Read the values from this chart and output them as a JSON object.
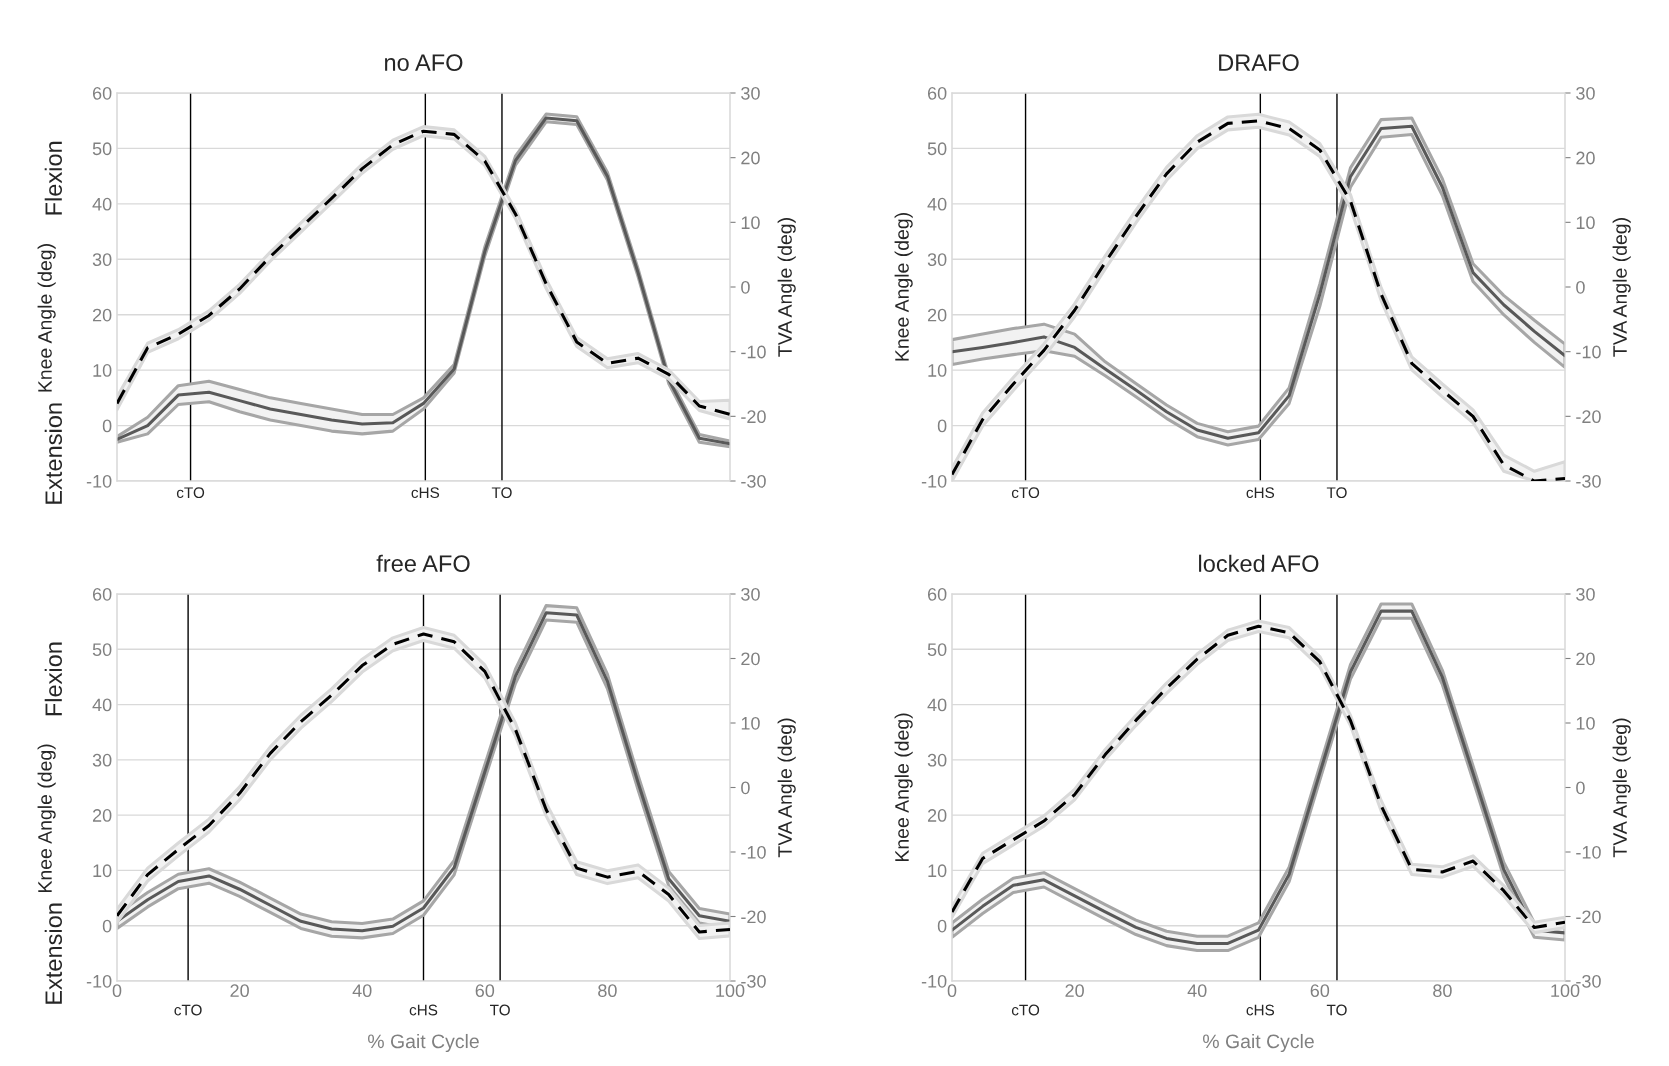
{
  "chart_data": [
    {
      "type": "line",
      "title": "no AFO",
      "ylabel": "Knee Angle (deg)",
      "y2label": "TVA Angle (deg)",
      "annotations": [
        "Flexion",
        "Extension"
      ],
      "x": [
        0,
        5,
        10,
        15,
        20,
        25,
        30,
        35,
        40,
        45,
        50,
        55,
        60,
        65,
        70,
        75,
        80,
        85,
        90,
        95,
        100
      ],
      "xlim": [
        0,
        100
      ],
      "ylim": [
        -10,
        60
      ],
      "yticks": [
        -10,
        0,
        10,
        20,
        30,
        40,
        50,
        60
      ],
      "y2lim": [
        -30,
        30
      ],
      "y2ticks": [
        -30,
        -20,
        -10,
        0,
        10,
        20,
        30
      ],
      "tick_labels": "y",
      "grid": "y",
      "legend": false,
      "ref_lines": [
        {
          "axis": "x",
          "value": 12,
          "label": "cTO",
          "color": "#000000"
        },
        {
          "axis": "x",
          "value": 50.3,
          "label": "cHS",
          "color": "#000000"
        },
        {
          "axis": "x",
          "value": 62.8,
          "label": "TO",
          "color": "#000000"
        }
      ],
      "series": [
        {
          "color": "#595959",
          "line_style": "solid",
          "values": [
            -2.5,
            0,
            5.5,
            6,
            4.5,
            3,
            2,
            1,
            0.3,
            0.5,
            4,
            10.2,
            31.4,
            47.8,
            55.5,
            55,
            45,
            27.6,
            8.3,
            -2.3,
            -3.3
          ],
          "lower": [
            -3,
            -1.5,
            3.8,
            4.3,
            2.5,
            1,
            0,
            -1,
            -1.5,
            -1,
            3,
            9.5,
            30.6,
            47,
            54.8,
            54.3,
            44.3,
            26.9,
            7.6,
            -3,
            -3.8
          ],
          "upper": [
            -2,
            1.5,
            7.2,
            8,
            6.5,
            5,
            4,
            3,
            2,
            2,
            5,
            11,
            32.2,
            48.6,
            56.2,
            55.7,
            45.7,
            28.3,
            9,
            -1.6,
            -2.8
          ]
        },
        {
          "color": "#000000",
          "line_style": "dashed",
          "axis": "y2",
          "values": [
            -18,
            -9.4,
            -7.3,
            -4.4,
            -0.3,
            4.7,
            9.2,
            13.7,
            18.3,
            22,
            24.1,
            23.6,
            19.5,
            11.3,
            0.5,
            -8.5,
            -11.8,
            -11,
            -13.5,
            -18.4,
            -19.7
          ],
          "lower": [
            -19,
            -10.1,
            -8,
            -5.1,
            -1,
            4,
            8.5,
            13,
            17.6,
            21.3,
            23.4,
            22.9,
            18.8,
            10.6,
            -0.2,
            -9.2,
            -12.5,
            -11.7,
            -14.2,
            -19.1,
            -20.4
          ],
          "upper": [
            -17,
            -8.7,
            -6.6,
            -3.7,
            0.4,
            5.4,
            9.9,
            14.4,
            19,
            22.7,
            24.8,
            24.3,
            20.2,
            12,
            1.2,
            -7.8,
            -11.1,
            -10.3,
            -12.8,
            -17.7,
            -17.5
          ]
        }
      ]
    },
    {
      "type": "line",
      "title": "DRAFO",
      "ylabel": "Knee Angle (deg)",
      "y2label": "TVA Angle (deg)",
      "x": [
        0,
        5,
        10,
        15,
        20,
        25,
        30,
        35,
        40,
        45,
        50,
        55,
        60,
        65,
        70,
        75,
        80,
        85,
        90,
        95,
        100
      ],
      "xlim": [
        0,
        100
      ],
      "ylim": [
        -10,
        60
      ],
      "yticks": [
        -10,
        0,
        10,
        20,
        30,
        40,
        50,
        60
      ],
      "y2lim": [
        -30,
        30
      ],
      "y2ticks": [
        -30,
        -20,
        -10,
        0,
        10,
        20,
        30
      ],
      "tick_labels": "y",
      "grid": "y",
      "legend": false,
      "ref_lines": [
        {
          "axis": "x",
          "value": 12,
          "label": "cTO",
          "color": "#000000"
        },
        {
          "axis": "x",
          "value": 50.3,
          "label": "cHS",
          "color": "#000000"
        },
        {
          "axis": "x",
          "value": 62.8,
          "label": "TO",
          "color": "#000000"
        }
      ],
      "series": [
        {
          "color": "#595959",
          "line_style": "solid",
          "values": [
            13.3,
            14.1,
            15,
            16,
            14.1,
            10.2,
            6.4,
            2.5,
            -0.8,
            -2.3,
            -1.3,
            5.4,
            23.7,
            44.9,
            53.6,
            54,
            43,
            27.6,
            21.8,
            17,
            12.6
          ],
          "lower": [
            11,
            12,
            12.8,
            13.5,
            12.5,
            9,
            5.2,
            1.3,
            -2,
            -3.5,
            -2.5,
            4,
            21.5,
            43,
            52,
            52.5,
            41.5,
            26,
            20,
            15,
            10.5
          ],
          "upper": [
            15.5,
            16.5,
            17.5,
            18.3,
            16.5,
            11.5,
            7.6,
            3.7,
            0.4,
            -1.1,
            -0.1,
            6.8,
            25.5,
            46.5,
            55.2,
            55.5,
            44.5,
            29.2,
            23.5,
            19,
            14.7
          ]
        },
        {
          "color": "#000000",
          "line_style": "dashed",
          "axis": "y2",
          "values": [
            -29,
            -20.5,
            -15,
            -9.8,
            -3.6,
            3.8,
            10.9,
            17.5,
            22.4,
            25.3,
            25.7,
            24.5,
            21.2,
            13.3,
            -1.1,
            -11.8,
            -16,
            -20,
            -27.5,
            -30,
            -29.6
          ],
          "lower": [
            -30,
            -21.5,
            -16,
            -10.8,
            -4.6,
            2.8,
            9.9,
            16.5,
            21.4,
            24.3,
            24.7,
            23.5,
            20.2,
            12.3,
            -2.1,
            -12.8,
            -17,
            -21,
            -28.5,
            -30,
            -30
          ],
          "upper": [
            -28,
            -19.5,
            -14,
            -8.8,
            -2.6,
            4.8,
            11.9,
            18.5,
            23.4,
            26.3,
            26.7,
            25.5,
            22.2,
            14.3,
            -0.1,
            -10.8,
            -15,
            -19,
            -26,
            -28.5,
            -27
          ]
        }
      ]
    },
    {
      "type": "line",
      "title": "free AFO",
      "ylabel": "Knee Angle (deg)",
      "y2label": "TVA Angle (deg)",
      "xlabel": "% Gait Cycle",
      "annotations": [
        "Flexion",
        "Extension"
      ],
      "x": [
        0,
        5,
        10,
        15,
        20,
        25,
        30,
        35,
        40,
        45,
        50,
        55,
        60,
        65,
        70,
        75,
        80,
        85,
        90,
        95,
        100
      ],
      "xlim": [
        0,
        100
      ],
      "xticks": [
        0,
        20,
        40,
        60,
        80,
        100
      ],
      "ylim": [
        -10,
        60
      ],
      "yticks": [
        -10,
        0,
        10,
        20,
        30,
        40,
        50,
        60
      ],
      "y2lim": [
        -30,
        30
      ],
      "y2ticks": [
        -30,
        -20,
        -10,
        0,
        10,
        20,
        30
      ],
      "grid": "y",
      "legend": false,
      "ref_lines": [
        {
          "axis": "x",
          "value": 11.6,
          "label": "cTO",
          "color": "#000000"
        },
        {
          "axis": "x",
          "value": 50,
          "label": "cHS",
          "color": "#000000"
        },
        {
          "axis": "x",
          "value": 62.5,
          "label": "TO",
          "color": "#000000"
        }
      ],
      "series": [
        {
          "color": "#595959",
          "line_style": "solid",
          "values": [
            0.8,
            4.7,
            8,
            9,
            6.6,
            3.7,
            0.8,
            -0.6,
            -0.9,
            -0.1,
            3.2,
            10.5,
            27.8,
            45.1,
            56.6,
            56.2,
            44.2,
            25.9,
            8.5,
            1.8,
            0.8
          ],
          "lower": [
            -0.5,
            3.4,
            6.7,
            7.7,
            5.3,
            2.4,
            -0.5,
            -1.9,
            -2.2,
            -1.4,
            1.9,
            9.2,
            26.5,
            43.8,
            55.3,
            54.9,
            42.9,
            24.6,
            7.2,
            0.5,
            -0.5
          ],
          "upper": [
            2.1,
            6,
            9.3,
            10.3,
            7.9,
            5,
            2.1,
            0.7,
            0.4,
            1.2,
            4.5,
            11.8,
            29.1,
            46.4,
            57.9,
            57.5,
            45.5,
            27.2,
            9.8,
            3.1,
            2.1
          ]
        },
        {
          "color": "#000000",
          "line_style": "dashed",
          "axis": "y2",
          "values": [
            -19.9,
            -13.5,
            -9.6,
            -5.9,
            -0.9,
            5.3,
            10.2,
            14.3,
            18.9,
            22.2,
            23.8,
            22.6,
            18,
            9,
            -3.4,
            -12.5,
            -13.9,
            -13,
            -16.6,
            -22.4,
            -22
          ],
          "lower": [
            -20.9,
            -14.5,
            -10.6,
            -6.9,
            -1.9,
            4.3,
            9.2,
            13.3,
            17.9,
            21.2,
            22.8,
            21.6,
            17,
            8,
            -4.4,
            -13.5,
            -14.9,
            -14,
            -17.6,
            -23.4,
            -23
          ],
          "upper": [
            -18.9,
            -12.5,
            -8.6,
            -4.9,
            0.1,
            6.3,
            11.2,
            15.3,
            19.9,
            23.2,
            24.8,
            23.6,
            19,
            10,
            -2.4,
            -11.5,
            -12.9,
            -12,
            -15.6,
            -21.4,
            -21
          ]
        }
      ]
    },
    {
      "type": "line",
      "title": "locked AFO",
      "ylabel": "Knee Angle (deg)",
      "y2label": "TVA Angle (deg)",
      "xlabel": "% Gait Cycle",
      "x": [
        0,
        5,
        10,
        15,
        20,
        25,
        30,
        35,
        40,
        45,
        50,
        55,
        60,
        65,
        70,
        75,
        80,
        85,
        90,
        95,
        100
      ],
      "xlim": [
        0,
        100
      ],
      "xticks": [
        0,
        20,
        40,
        60,
        80,
        100
      ],
      "ylim": [
        -10,
        60
      ],
      "yticks": [
        -10,
        0,
        10,
        20,
        30,
        40,
        50,
        60
      ],
      "y2lim": [
        -30,
        30
      ],
      "y2ticks": [
        -30,
        -20,
        -10,
        0,
        10,
        20,
        30
      ],
      "grid": "y",
      "legend": false,
      "ref_lines": [
        {
          "axis": "x",
          "value": 12,
          "label": "cTO",
          "color": "#000000"
        },
        {
          "axis": "x",
          "value": 50.3,
          "label": "cHS",
          "color": "#000000"
        },
        {
          "axis": "x",
          "value": 62.8,
          "label": "TO",
          "color": "#000000"
        }
      ],
      "series": [
        {
          "color": "#595959",
          "line_style": "solid",
          "values": [
            -0.8,
            3.5,
            7.3,
            8.3,
            5.4,
            2.5,
            -0.3,
            -2.3,
            -3.2,
            -3.2,
            -0.8,
            9.3,
            27.6,
            45.9,
            56.9,
            56.9,
            44.9,
            27.6,
            10.2,
            -0.8,
            -1.3
          ],
          "lower": [
            -2.1,
            2.2,
            6,
            7,
            4.1,
            1.2,
            -1.6,
            -3.6,
            -4.5,
            -4.5,
            -2.1,
            8,
            26.3,
            44.6,
            55.6,
            55.6,
            43.6,
            26.3,
            8.9,
            -2.1,
            -2.6
          ],
          "upper": [
            0.5,
            4.8,
            8.6,
            9.6,
            6.7,
            3.8,
            1,
            -1,
            -1.9,
            -1.9,
            0.5,
            10.6,
            28.9,
            47.2,
            58.2,
            58.2,
            46.2,
            28.9,
            11.5,
            0.5,
            0
          ]
        },
        {
          "color": "#000000",
          "line_style": "dashed",
          "axis": "y2",
          "values": [
            -19.3,
            -11,
            -8.1,
            -5.2,
            -1.1,
            5.1,
            10.4,
            15.4,
            19.9,
            23.6,
            25,
            24,
            19.5,
            10.4,
            -2.8,
            -12.7,
            -13.1,
            -11.4,
            -16,
            -21.7,
            -20.9
          ],
          "lower": [
            -20.1,
            -11.8,
            -8.9,
            -6,
            -1.9,
            4.3,
            9.6,
            14.6,
            19.1,
            22.8,
            24.2,
            23.2,
            18.7,
            9.6,
            -3.6,
            -13.5,
            -13.9,
            -12.2,
            -16.8,
            -22.5,
            -21.7
          ],
          "upper": [
            -18.5,
            -10.2,
            -7.3,
            -4.4,
            -0.3,
            5.9,
            11.2,
            16.2,
            20.7,
            24.4,
            25.8,
            24.8,
            20.3,
            11.2,
            -2,
            -11.9,
            -12.3,
            -10.6,
            -15.2,
            -20.9,
            -20.1
          ]
        }
      ]
    }
  ]
}
